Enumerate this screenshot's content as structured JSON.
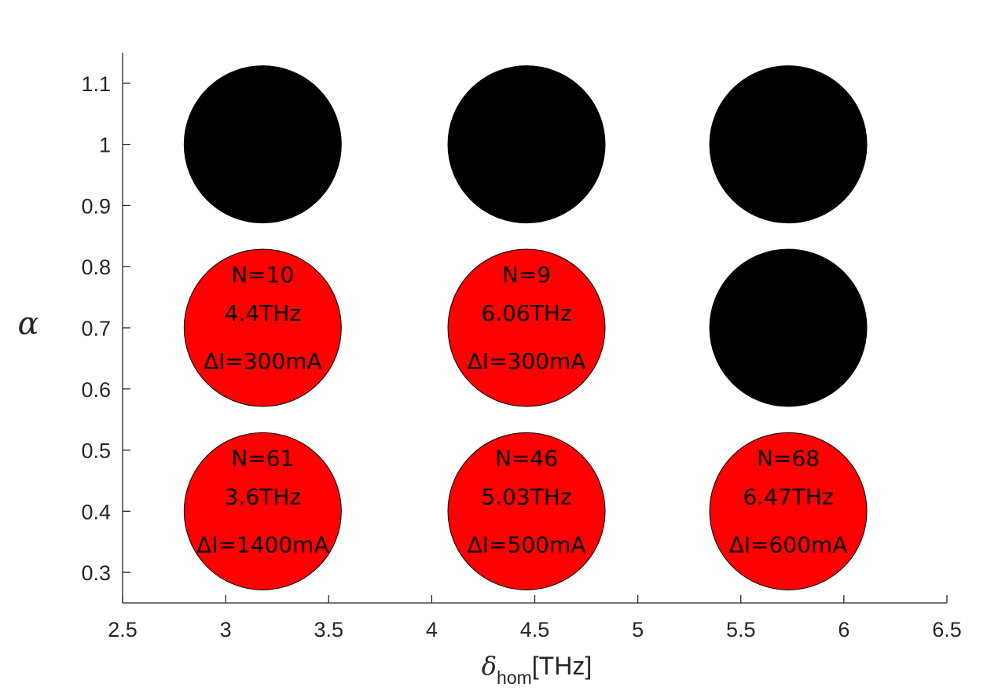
{
  "chart_data": {
    "type": "scatter",
    "xlabel": {
      "symbol": "δ",
      "subscript": "hom",
      "unit": "[THz]"
    },
    "ylabel": "α",
    "xlim": [
      2.5,
      6.5
    ],
    "ylim": [
      0.25,
      1.15
    ],
    "xticks": [
      "2.5",
      "3",
      "3.5",
      "4",
      "4.5",
      "5",
      "5.5",
      "6",
      "6.5"
    ],
    "yticks": [
      "0.3",
      "0.4",
      "0.5",
      "0.6",
      "0.7",
      "0.8",
      "0.9",
      "1",
      "1.1"
    ],
    "grid": false,
    "colors": {
      "stable": "#ff0000",
      "unstable": "#000000"
    },
    "points": [
      {
        "x": 3.18,
        "y": 1.0,
        "status": "unstable",
        "lines": []
      },
      {
        "x": 4.46,
        "y": 1.0,
        "status": "unstable",
        "lines": []
      },
      {
        "x": 5.73,
        "y": 1.0,
        "status": "unstable",
        "lines": []
      },
      {
        "x": 3.18,
        "y": 0.7,
        "status": "stable",
        "lines": [
          "N=10",
          "4.4THz",
          "ΔI=300mA"
        ]
      },
      {
        "x": 4.46,
        "y": 0.7,
        "status": "stable",
        "lines": [
          "N=9",
          "6.06THz",
          "ΔI=300mA"
        ]
      },
      {
        "x": 5.73,
        "y": 0.7,
        "status": "unstable",
        "lines": []
      },
      {
        "x": 3.18,
        "y": 0.4,
        "status": "stable",
        "lines": [
          "N=61",
          "3.6THz",
          "ΔI=1400mA"
        ]
      },
      {
        "x": 4.46,
        "y": 0.4,
        "status": "stable",
        "lines": [
          "N=46",
          "5.03THz",
          "ΔI=500mA"
        ]
      },
      {
        "x": 5.73,
        "y": 0.4,
        "status": "stable",
        "lines": [
          "N=68",
          "6.47THz",
          "ΔI=600mA"
        ]
      }
    ]
  }
}
